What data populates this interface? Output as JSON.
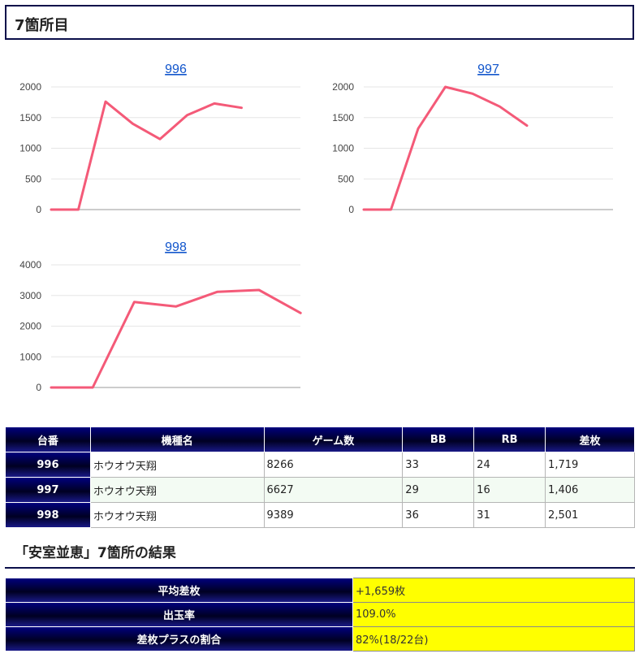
{
  "section": {
    "title": "7箇所目"
  },
  "chart_data": [
    {
      "type": "line",
      "title": "996",
      "ylim": [
        0,
        2000
      ],
      "yticks": [
        0,
        500,
        1000,
        1500,
        2000
      ],
      "series": [
        {
          "values": [
            0,
            0,
            1760,
            1400,
            1150,
            1540,
            1730,
            1660
          ]
        }
      ],
      "color": "#f45a78"
    },
    {
      "type": "line",
      "title": "997",
      "ylim": [
        0,
        2000
      ],
      "yticks": [
        0,
        500,
        1000,
        1500,
        2000
      ],
      "series": [
        {
          "values": [
            0,
            0,
            1320,
            2000,
            1890,
            1680,
            1370
          ]
        }
      ],
      "color": "#f45a78"
    },
    {
      "type": "line",
      "title": "998",
      "ylim": [
        0,
        4000
      ],
      "yticks": [
        0,
        1000,
        2000,
        3000,
        4000
      ],
      "series": [
        {
          "values": [
            0,
            0,
            2790,
            2640,
            3120,
            3180,
            2430
          ]
        }
      ],
      "color": "#f45a78"
    }
  ],
  "table": {
    "headers": [
      "台番",
      "機種名",
      "ゲーム数",
      "BB",
      "RB",
      "差枚"
    ],
    "rows": [
      {
        "id": "996",
        "machine": "ホウオウ天翔",
        "games": "8266",
        "bb": "33",
        "rb": "24",
        "diff": "1,719"
      },
      {
        "id": "997",
        "machine": "ホウオウ天翔",
        "games": "6627",
        "bb": "29",
        "rb": "16",
        "diff": "1,406"
      },
      {
        "id": "998",
        "machine": "ホウオウ天翔",
        "games": "9389",
        "bb": "36",
        "rb": "31",
        "diff": "2,501"
      }
    ]
  },
  "result": {
    "heading": "「安室並恵」7箇所の結果",
    "rows": [
      {
        "label": "平均差枚",
        "value": "+1,659枚"
      },
      {
        "label": "出玉率",
        "value": "109.0%"
      },
      {
        "label": "差枚プラスの割合",
        "value": "82%(18/22台)"
      }
    ]
  },
  "colors": {
    "header_navy": "#000022",
    "series_pink": "#f45a78",
    "summary_yellow": "#ffff00",
    "link_blue": "#1155cc"
  }
}
